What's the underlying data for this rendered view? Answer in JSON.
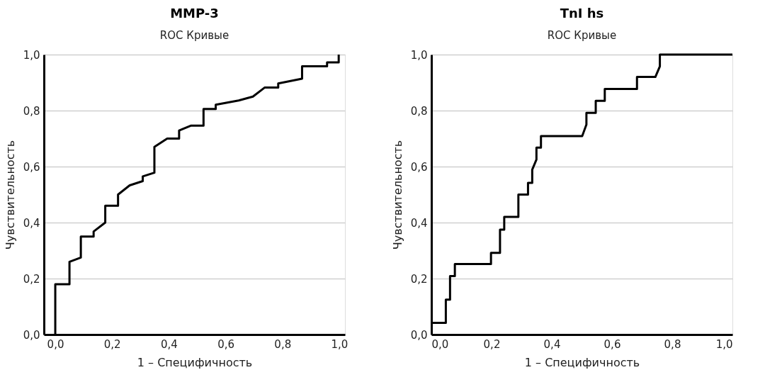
{
  "chart_data": [
    {
      "type": "line",
      "title": "MMP-3",
      "subtitle": "ROC Кривые",
      "xlabel": "1 – Специфичность",
      "ylabel": "Чувствительность",
      "series": [
        {
          "color": "#000000",
          "x": [
            0.0,
            0.0,
            0.05,
            0.05,
            0.09,
            0.09,
            0.135,
            0.135,
            0.176,
            0.176,
            0.221,
            0.221,
            0.262,
            0.308,
            0.308,
            0.349,
            0.349,
            0.394,
            0.436,
            0.436,
            0.477,
            0.522,
            0.522,
            0.565,
            0.565,
            0.646,
            0.696,
            0.737,
            0.785,
            0.785,
            0.869,
            0.869,
            0.957,
            0.957,
            0.998,
            0.998
          ],
          "values": [
            0.0,
            0.18,
            0.18,
            0.26,
            0.275,
            0.35,
            0.35,
            0.368,
            0.4,
            0.46,
            0.46,
            0.5,
            0.533,
            0.548,
            0.565,
            0.578,
            0.67,
            0.7,
            0.7,
            0.729,
            0.746,
            0.746,
            0.806,
            0.806,
            0.821,
            0.836,
            0.85,
            0.882,
            0.882,
            0.897,
            0.914,
            0.958,
            0.958,
            0.972,
            0.972,
            1.0
          ]
        }
      ],
      "xlim": [
        -0.04,
        1.02
      ],
      "ylim": [
        0,
        1
      ],
      "xticks": [
        {
          "value": 0,
          "label": "0,0"
        },
        {
          "value": 0.2,
          "label": "0,2"
        },
        {
          "value": 0.4,
          "label": "0,4"
        },
        {
          "value": 0.6,
          "label": "0,6"
        },
        {
          "value": 0.8,
          "label": "0,8"
        },
        {
          "value": 1,
          "label": "1,0"
        }
      ],
      "yticks": [
        {
          "value": 0,
          "label": "0,0"
        },
        {
          "value": 0.2,
          "label": "0,2"
        },
        {
          "value": 0.4,
          "label": "0,4"
        },
        {
          "value": 0.6,
          "label": "0,6"
        },
        {
          "value": 0.8,
          "label": "0,8"
        },
        {
          "value": 1,
          "label": "1,0"
        }
      ],
      "grid": "y",
      "marker": "none",
      "line_style": "solid"
    },
    {
      "type": "line",
      "title": "TnI hs",
      "subtitle": "ROC Кривые",
      "xlabel": "1 – Специфичность",
      "ylabel": "Чувствительность",
      "series": [
        {
          "color": "#000000",
          "x": [
            0.0,
            0.048,
            0.048,
            0.062,
            0.062,
            0.078,
            0.078,
            0.198,
            0.198,
            0.228,
            0.228,
            0.242,
            0.242,
            0.289,
            0.289,
            0.321,
            0.321,
            0.335,
            0.335,
            0.349,
            0.349,
            0.364,
            0.364,
            0.501,
            0.515,
            0.515,
            0.546,
            0.546,
            0.576,
            0.576,
            0.683,
            0.683,
            0.744,
            0.759,
            0.759,
            1.0
          ],
          "values": [
            0.042,
            0.042,
            0.125,
            0.125,
            0.209,
            0.209,
            0.252,
            0.252,
            0.292,
            0.292,
            0.375,
            0.375,
            0.42,
            0.42,
            0.5,
            0.5,
            0.542,
            0.542,
            0.589,
            0.625,
            0.668,
            0.668,
            0.709,
            0.709,
            0.75,
            0.792,
            0.792,
            0.835,
            0.835,
            0.877,
            0.877,
            0.92,
            0.92,
            0.958,
            1.0,
            1.0
          ]
        }
      ],
      "xlim": [
        0,
        1
      ],
      "ylim": [
        0,
        1
      ],
      "xticks": [
        {
          "value": 0,
          "label": "0,0"
        },
        {
          "value": 0.2,
          "label": "0,2"
        },
        {
          "value": 0.4,
          "label": "0,4"
        },
        {
          "value": 0.6,
          "label": "0,6"
        },
        {
          "value": 0.8,
          "label": "0,8"
        },
        {
          "value": 1,
          "label": "1,0"
        }
      ],
      "yticks": [
        {
          "value": 0,
          "label": "0,0"
        },
        {
          "value": 0.2,
          "label": "0,2"
        },
        {
          "value": 0.4,
          "label": "0,4"
        },
        {
          "value": 0.6,
          "label": "0,6"
        },
        {
          "value": 0.8,
          "label": "0,8"
        },
        {
          "value": 1,
          "label": "1,0"
        }
      ],
      "grid": "y",
      "marker": "none",
      "line_style": "solid"
    }
  ]
}
